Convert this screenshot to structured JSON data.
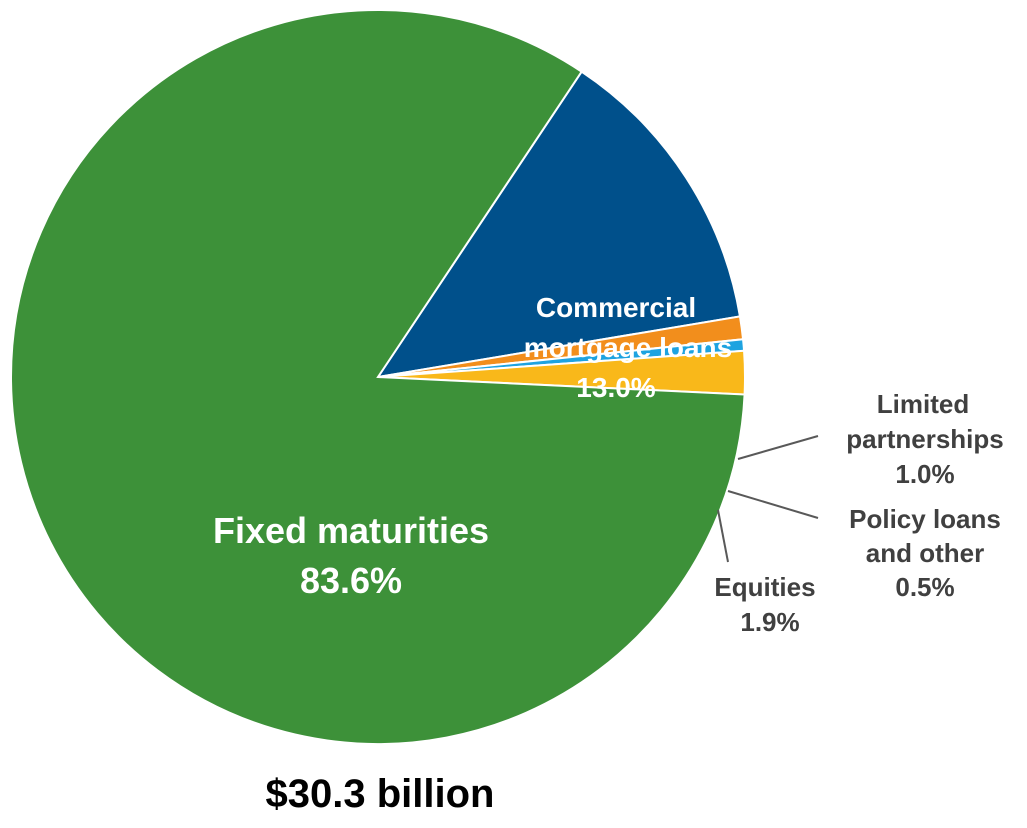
{
  "chart_data": {
    "type": "pie",
    "title": "",
    "total_label": "$30.3 billion",
    "slices": [
      {
        "label": "Fixed maturities",
        "value_label": "83.6%",
        "value": 83.6,
        "color": "#3d9139"
      },
      {
        "label": "Commercial mortgage loans",
        "value_label": "13.0%",
        "value": 13.0,
        "color": "#00508b"
      },
      {
        "label": "Limited partnerships",
        "value_label": "1.0%",
        "value": 1.0,
        "color": "#f28e1c"
      },
      {
        "label": "Policy loans and other",
        "value_label": "0.5%",
        "value": 0.5,
        "color": "#1ea3e0"
      },
      {
        "label": "Equities",
        "value_label": "1.9%",
        "value": 1.9,
        "color": "#f9b81a"
      }
    ]
  }
}
